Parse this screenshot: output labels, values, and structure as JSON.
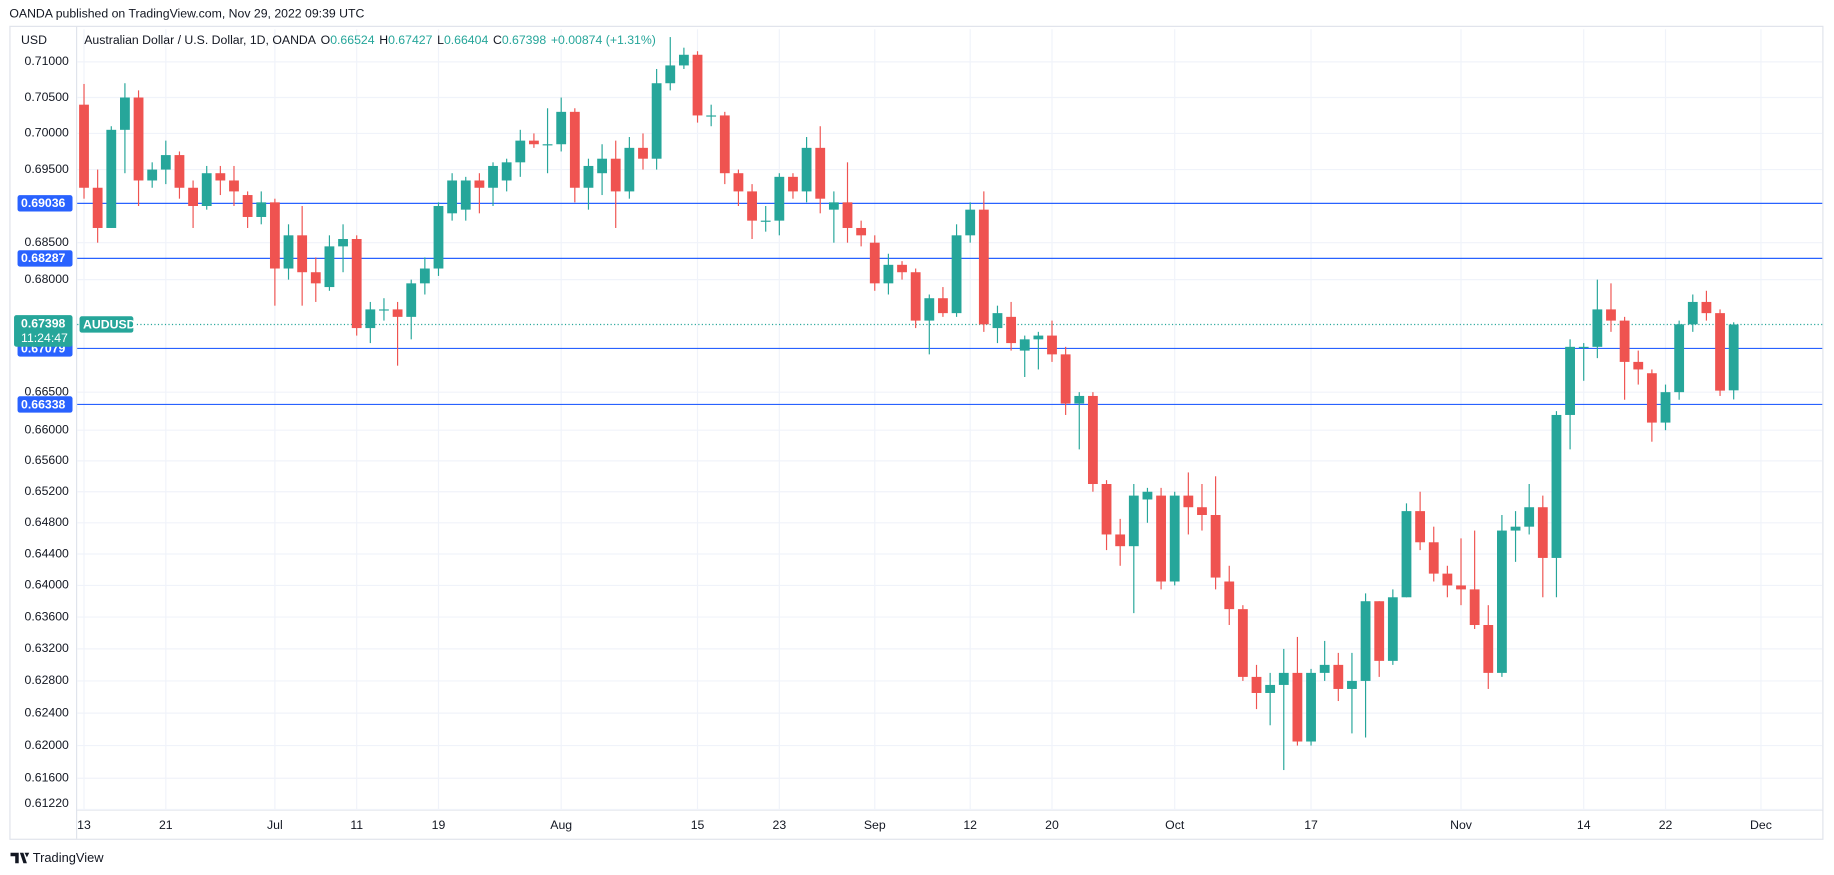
{
  "header": {
    "published": "OANDA published on TradingView.com, Nov 29, 2022 09:39 UTC",
    "brand": "TradingView"
  },
  "chart_data": {
    "type": "candlestick",
    "currency": "USD",
    "title": "Australian Dollar / U.S. Dollar, 1D, OANDA",
    "ohlc_legend": [
      {
        "key": "O",
        "value": "0.66524"
      },
      {
        "key": "H",
        "value": "0.67427"
      },
      {
        "key": "L",
        "value": "0.66404"
      },
      {
        "key": "C",
        "value": "0.67398"
      }
    ],
    "change": "+0.00874 (+1.31%)",
    "up_color": "#26a69a",
    "down_color": "#ef5350",
    "log_scale": true,
    "grid": true,
    "open": [
      0.704,
      0.6925,
      0.687,
      0.7005,
      0.705,
      0.6935,
      0.695,
      0.697,
      0.6925,
      0.69,
      0.6945,
      0.6935,
      0.6915,
      0.6885,
      0.6905,
      0.6815,
      0.686,
      0.681,
      0.679,
      0.6845,
      0.6855,
      0.6735,
      0.676,
      0.676,
      0.675,
      0.6795,
      0.6815,
      0.689,
      0.6895,
      0.6935,
      0.6925,
      0.6935,
      0.696,
      0.699,
      0.6985,
      0.6985,
      0.703,
      0.6925,
      0.6945,
      0.6965,
      0.692,
      0.698,
      0.6965,
      0.707,
      0.7095,
      0.711,
      0.7025,
      0.7025,
      0.6945,
      0.692,
      0.688,
      0.688,
      0.694,
      0.692,
      0.698,
      0.6895,
      0.6905,
      0.687,
      0.685,
      0.6795,
      0.682,
      0.681,
      0.6745,
      0.6775,
      0.6755,
      0.686,
      0.6895,
      0.6735,
      0.675,
      0.6705,
      0.672,
      0.6725,
      0.67,
      0.6635,
      0.6645,
      0.653,
      0.6465,
      0.645,
      0.651,
      0.6515,
      0.6405,
      0.6515,
      0.65,
      0.649,
      0.6405,
      0.637,
      0.6285,
      0.6265,
      0.6275,
      0.629,
      0.6205,
      0.629,
      0.63,
      0.627,
      0.628,
      0.638,
      0.6305,
      0.6385,
      0.6495,
      0.6455,
      0.6415,
      0.64,
      0.6395,
      0.635,
      0.629,
      0.647,
      0.6475,
      0.65,
      0.6435,
      0.662,
      0.671,
      0.671,
      0.676,
      0.6745,
      0.669,
      0.6675,
      0.661,
      0.665,
      0.674,
      0.677,
      0.6755,
      0.66524
    ],
    "high": [
      0.7069,
      0.695,
      0.701,
      0.707,
      0.706,
      0.696,
      0.699,
      0.6975,
      0.6935,
      0.6955,
      0.6955,
      0.6955,
      0.692,
      0.692,
      0.691,
      0.6875,
      0.69,
      0.683,
      0.686,
      0.6875,
      0.686,
      0.677,
      0.6775,
      0.677,
      0.68,
      0.683,
      0.6905,
      0.6945,
      0.694,
      0.6945,
      0.696,
      0.6965,
      0.7005,
      0.7,
      0.7035,
      0.705,
      0.7035,
      0.6965,
      0.6985,
      0.699,
      0.6995,
      0.7,
      0.709,
      0.7135,
      0.712,
      0.7115,
      0.704,
      0.703,
      0.695,
      0.693,
      0.69,
      0.6945,
      0.6945,
      0.6995,
      0.701,
      0.692,
      0.696,
      0.688,
      0.686,
      0.6835,
      0.6825,
      0.6815,
      0.678,
      0.679,
      0.6875,
      0.6905,
      0.692,
      0.6765,
      0.677,
      0.6725,
      0.673,
      0.6745,
      0.671,
      0.665,
      0.665,
      0.6535,
      0.6485,
      0.653,
      0.6525,
      0.6525,
      0.652,
      0.6545,
      0.653,
      0.654,
      0.6425,
      0.6375,
      0.63,
      0.629,
      0.632,
      0.6335,
      0.6295,
      0.633,
      0.6315,
      0.6315,
      0.639,
      0.638,
      0.6395,
      0.6505,
      0.652,
      0.6475,
      0.6425,
      0.646,
      0.647,
      0.6375,
      0.649,
      0.6495,
      0.653,
      0.6515,
      0.6625,
      0.672,
      0.6715,
      0.68,
      0.6795,
      0.675,
      0.6705,
      0.668,
      0.666,
      0.6745,
      0.678,
      0.6785,
      0.676,
      0.67427
    ],
    "low": [
      0.691,
      0.685,
      0.687,
      0.6945,
      0.69,
      0.6925,
      0.693,
      0.691,
      0.687,
      0.6895,
      0.6915,
      0.69,
      0.687,
      0.6875,
      0.6765,
      0.68,
      0.6765,
      0.677,
      0.6785,
      0.681,
      0.6725,
      0.6715,
      0.6745,
      0.6685,
      0.672,
      0.678,
      0.6805,
      0.688,
      0.688,
      0.689,
      0.69,
      0.692,
      0.694,
      0.698,
      0.6945,
      0.6975,
      0.6905,
      0.6895,
      0.6915,
      0.687,
      0.691,
      0.695,
      0.695,
      0.706,
      0.709,
      0.7015,
      0.701,
      0.693,
      0.69,
      0.6855,
      0.6865,
      0.686,
      0.691,
      0.6905,
      0.689,
      0.685,
      0.685,
      0.6845,
      0.6785,
      0.678,
      0.68,
      0.6735,
      0.67,
      0.675,
      0.675,
      0.685,
      0.673,
      0.6715,
      0.6705,
      0.667,
      0.668,
      0.669,
      0.662,
      0.6575,
      0.652,
      0.6445,
      0.6425,
      0.6365,
      0.648,
      0.6395,
      0.64,
      0.6465,
      0.647,
      0.6395,
      0.635,
      0.628,
      0.6245,
      0.6225,
      0.617,
      0.62,
      0.62,
      0.628,
      0.6255,
      0.6215,
      0.621,
      0.6285,
      0.63,
      0.6385,
      0.6445,
      0.6405,
      0.6385,
      0.6375,
      0.6345,
      0.627,
      0.6285,
      0.643,
      0.6465,
      0.6385,
      0.6385,
      0.6575,
      0.6665,
      0.6695,
      0.673,
      0.664,
      0.666,
      0.6585,
      0.66,
      0.664,
      0.673,
      0.6745,
      0.6645,
      0.66404
    ],
    "close": [
      0.6925,
      0.687,
      0.7005,
      0.705,
      0.6935,
      0.695,
      0.697,
      0.6925,
      0.69,
      0.6945,
      0.6935,
      0.692,
      0.6885,
      0.6905,
      0.6815,
      0.686,
      0.681,
      0.6795,
      0.6845,
      0.6855,
      0.6735,
      0.676,
      0.676,
      0.675,
      0.6795,
      0.6815,
      0.69,
      0.6935,
      0.6935,
      0.6925,
      0.6955,
      0.696,
      0.699,
      0.6985,
      0.6985,
      0.703,
      0.6925,
      0.6955,
      0.6965,
      0.692,
      0.698,
      0.6965,
      0.707,
      0.7095,
      0.711,
      0.7025,
      0.7025,
      0.6945,
      0.692,
      0.688,
      0.688,
      0.694,
      0.692,
      0.698,
      0.691,
      0.6905,
      0.687,
      0.686,
      0.6795,
      0.682,
      0.681,
      0.6745,
      0.6775,
      0.6755,
      0.686,
      0.6895,
      0.674,
      0.6755,
      0.6715,
      0.672,
      0.6725,
      0.67,
      0.6635,
      0.6645,
      0.653,
      0.6465,
      0.645,
      0.6515,
      0.652,
      0.6405,
      0.6515,
      0.65,
      0.649,
      0.641,
      0.637,
      0.6285,
      0.6265,
      0.6275,
      0.629,
      0.6205,
      0.629,
      0.63,
      0.627,
      0.628,
      0.638,
      0.6305,
      0.6385,
      0.6495,
      0.6455,
      0.6415,
      0.64,
      0.6395,
      0.635,
      0.629,
      0.647,
      0.6475,
      0.65,
      0.6435,
      0.662,
      0.671,
      0.671,
      0.676,
      0.6745,
      0.669,
      0.668,
      0.661,
      0.665,
      0.674,
      0.677,
      0.6755,
      0.6652,
      0.67398
    ],
    "xlim": [
      -0.5,
      127.5
    ],
    "xticks": [
      {
        "value": 0,
        "label": "13"
      },
      {
        "value": 6,
        "label": "21"
      },
      {
        "value": 14,
        "label": "Jul"
      },
      {
        "value": 20,
        "label": "11"
      },
      {
        "value": 26,
        "label": "19"
      },
      {
        "value": 35,
        "label": "Aug"
      },
      {
        "value": 45,
        "label": "15"
      },
      {
        "value": 51,
        "label": "23"
      },
      {
        "value": 58,
        "label": "Sep"
      },
      {
        "value": 65,
        "label": "12"
      },
      {
        "value": 71,
        "label": "20"
      },
      {
        "value": 80,
        "label": "Oct"
      },
      {
        "value": 90,
        "label": "17"
      },
      {
        "value": 101,
        "label": "Nov"
      },
      {
        "value": 110,
        "label": "14"
      },
      {
        "value": 116,
        "label": "22"
      },
      {
        "value": 123,
        "label": "Dec"
      }
    ],
    "ylim": [
      0.6122,
      0.7146
    ],
    "yticks": [
      {
        "value": 0.71,
        "label": "0.71000"
      },
      {
        "value": 0.705,
        "label": "0.70500"
      },
      {
        "value": 0.7,
        "label": "0.70000"
      },
      {
        "value": 0.695,
        "label": "0.69500"
      },
      {
        "value": 0.685,
        "label": "0.68500"
      },
      {
        "value": 0.68,
        "label": "0.68000"
      },
      {
        "value": 0.665,
        "label": "0.66500"
      },
      {
        "value": 0.66,
        "label": "0.66000"
      },
      {
        "value": 0.656,
        "label": "0.65600"
      },
      {
        "value": 0.652,
        "label": "0.65200"
      },
      {
        "value": 0.648,
        "label": "0.64800"
      },
      {
        "value": 0.644,
        "label": "0.64400"
      },
      {
        "value": 0.64,
        "label": "0.64000"
      },
      {
        "value": 0.636,
        "label": "0.63600"
      },
      {
        "value": 0.632,
        "label": "0.63200"
      },
      {
        "value": 0.628,
        "label": "0.62800"
      },
      {
        "value": 0.624,
        "label": "0.62400"
      },
      {
        "value": 0.62,
        "label": "0.62000"
      },
      {
        "value": 0.616,
        "label": "0.61600"
      },
      {
        "value": 0.6122,
        "label": "0.61220"
      }
    ],
    "levels": [
      {
        "value": 0.69036,
        "label": "0.69036"
      },
      {
        "value": 0.68287,
        "label": "0.68287"
      },
      {
        "value": 0.67079,
        "label": "0.67079"
      },
      {
        "value": 0.66338,
        "label": "0.66338"
      }
    ],
    "level_color": "#2962ff",
    "last_price": {
      "value": 0.67398,
      "label": "0.67398",
      "symbol": "AUDUSD",
      "countdown": "11:24:47"
    }
  }
}
